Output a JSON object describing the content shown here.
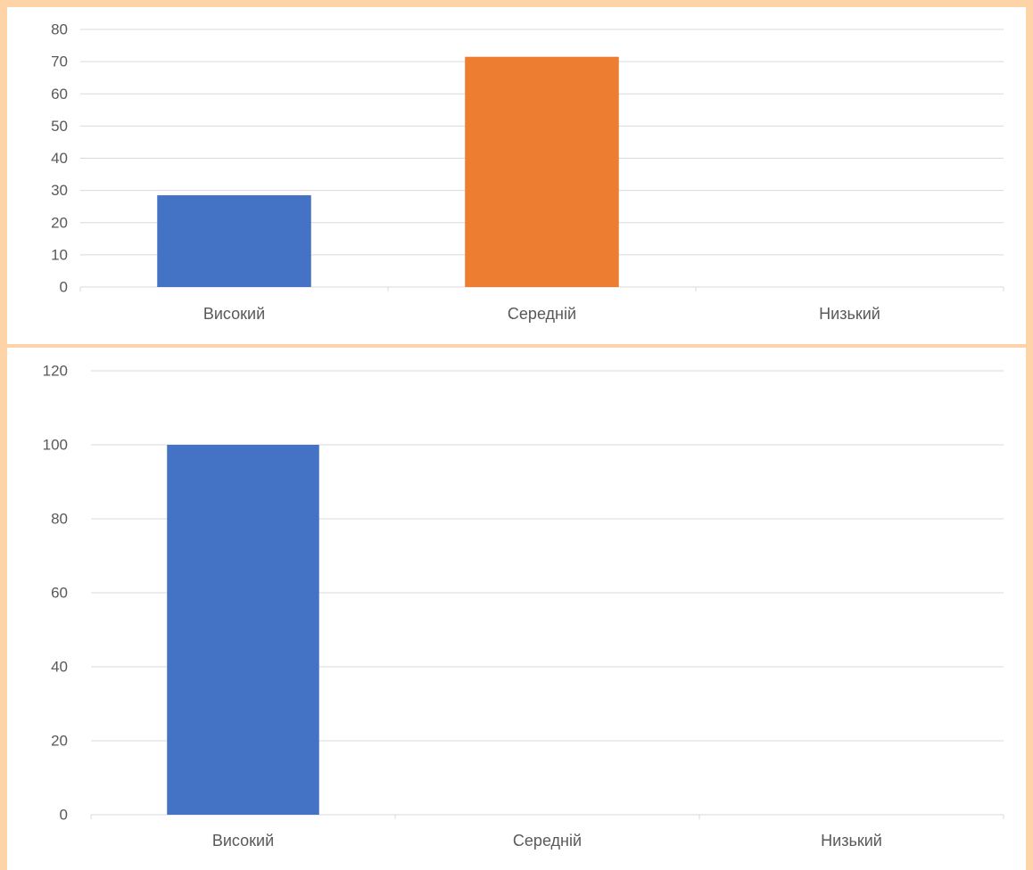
{
  "colors": {
    "background": "#FFD3A8",
    "panel": "#FFFFFF",
    "gridline": "#D9D9D9",
    "text": "#595959"
  },
  "chart_data": [
    {
      "type": "bar",
      "title": "",
      "categories": [
        "Високий",
        "Середній",
        "Низький"
      ],
      "values": [
        28.5,
        71.5,
        0
      ],
      "bar_colors": [
        "#4472C4",
        "#ED7D31",
        "#A5A5A5"
      ],
      "ylim": [
        0,
        80
      ],
      "yticks": [
        0,
        10,
        20,
        30,
        40,
        50,
        60,
        70,
        80
      ],
      "grid": true,
      "legend": "none"
    },
    {
      "type": "bar",
      "title": "",
      "categories": [
        "Високий",
        "Середній",
        "Низький"
      ],
      "values": [
        100,
        0,
        0
      ],
      "bar_colors": [
        "#4472C4",
        "#ED7D31",
        "#A5A5A5"
      ],
      "ylim": [
        0,
        120
      ],
      "yticks": [
        0,
        20,
        40,
        60,
        80,
        100,
        120
      ],
      "grid": true,
      "legend": "none"
    }
  ]
}
